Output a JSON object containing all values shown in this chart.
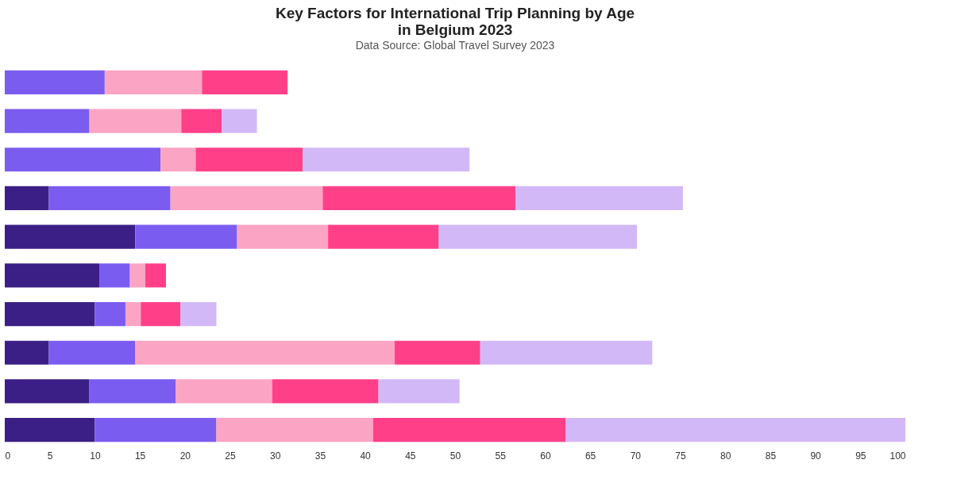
{
  "chart_data": {
    "type": "bar",
    "orientation": "horizontal",
    "stacked": true,
    "title": "Key Factors for International Trip Planning by Age in Belgium 2023",
    "subtitle": "Data Source: Global Travel Survey 2023",
    "categories": [
      null,
      null,
      null,
      null,
      null,
      null,
      null,
      null,
      null,
      null
    ],
    "series": [
      {
        "color": "#3b1f86",
        "values": [
          null,
          null,
          null,
          4.9,
          14.5,
          10.5,
          10.0,
          4.9,
          9.4,
          10.0
        ]
      },
      {
        "color": "#7b5cf0",
        "values": [
          11.1,
          9.4,
          17.3,
          13.5,
          11.3,
          3.4,
          3.4,
          9.6,
          9.6,
          13.5
        ]
      },
      {
        "color": "#fca4c4",
        "values": [
          10.8,
          10.2,
          3.9,
          16.9,
          10.1,
          1.7,
          1.7,
          28.8,
          10.7,
          17.4
        ]
      },
      {
        "color": "#ff4088",
        "values": [
          9.5,
          4.5,
          11.9,
          21.4,
          12.3,
          2.3,
          4.4,
          9.5,
          11.8,
          21.4
        ]
      },
      {
        "color": "#d3b8f8",
        "values": [
          null,
          3.9,
          18.5,
          18.6,
          22.0,
          null,
          4.0,
          19.1,
          9.0,
          37.7
        ]
      }
    ],
    "xlim": [
      0,
      100
    ],
    "xticks": [
      0,
      5,
      10,
      15,
      20,
      25,
      30,
      35,
      40,
      45,
      50,
      55,
      60,
      65,
      70,
      75,
      80,
      85,
      90,
      95,
      100
    ],
    "tick_labels": "x"
  }
}
